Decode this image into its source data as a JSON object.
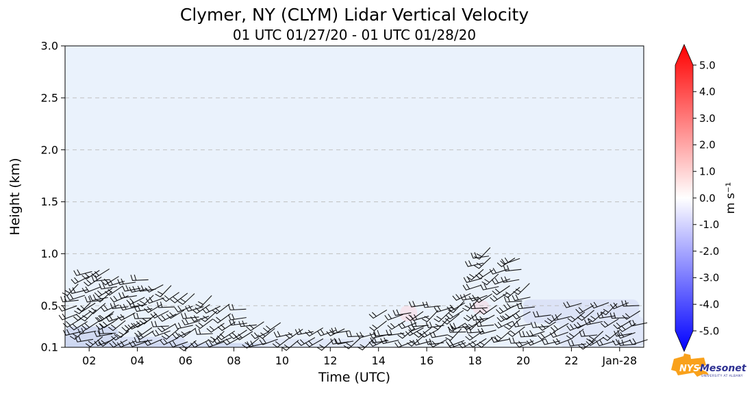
{
  "header": {
    "title": "Clymer, NY (CLYM) Lidar Vertical Velocity",
    "subtitle": "01 UTC 01/27/20 - 01 UTC 01/28/20"
  },
  "chart_data": {
    "type": "heatmap",
    "title": "Clymer, NY (CLYM) Lidar Vertical Velocity",
    "subtitle": "01 UTC 01/27/20 - 01 UTC 01/28/20",
    "station": "CLYM",
    "location": "Clymer, NY",
    "variable": "Lidar Vertical Velocity",
    "time_start": "01 UTC 01/27/20",
    "time_end": "01 UTC 01/28/20",
    "xlabel": "Time (UTC)",
    "ylabel": "Height (km)",
    "xlim_hours_after_start": [
      0,
      24
    ],
    "x_ticks": [
      {
        "hour": 1,
        "label": "02"
      },
      {
        "hour": 3,
        "label": "04"
      },
      {
        "hour": 5,
        "label": "06"
      },
      {
        "hour": 7,
        "label": "08"
      },
      {
        "hour": 9,
        "label": "10"
      },
      {
        "hour": 11,
        "label": "12"
      },
      {
        "hour": 13,
        "label": "14"
      },
      {
        "hour": 15,
        "label": "16"
      },
      {
        "hour": 17,
        "label": "18"
      },
      {
        "hour": 19,
        "label": "20"
      },
      {
        "hour": 21,
        "label": "22"
      },
      {
        "hour": 23,
        "label": "Jan-28"
      }
    ],
    "ylim": [
      0.1,
      3.0
    ],
    "y_ticks": [
      {
        "value": 0.1,
        "label": "0.1"
      },
      {
        "value": 0.5,
        "label": "0.5"
      },
      {
        "value": 1.0,
        "label": "1.0"
      },
      {
        "value": 1.5,
        "label": "1.5"
      },
      {
        "value": 2.0,
        "label": "2.0"
      },
      {
        "value": 2.5,
        "label": "2.5"
      },
      {
        "value": 3.0,
        "label": "3.0"
      }
    ],
    "grid": {
      "horizontal": true,
      "style": "dashed",
      "color": "#bfbfbf"
    },
    "colorbar": {
      "label": "m s⁻¹",
      "range": [
        -5.0,
        5.0
      ],
      "extend": "both",
      "colormap": "blue-white-red",
      "color_min": "#0000ff",
      "color_mid": "#ffffff",
      "color_max": "#ff0000",
      "ticks": [
        {
          "value": 5.0,
          "label": "5.0"
        },
        {
          "value": 4.0,
          "label": "4.0"
        },
        {
          "value": 3.0,
          "label": "3.0"
        },
        {
          "value": 2.0,
          "label": "2.0"
        },
        {
          "value": 1.0,
          "label": "1.0"
        },
        {
          "value": 0.0,
          "label": "0.0"
        },
        {
          "value": -1.0,
          "label": "-1.0"
        },
        {
          "value": -2.0,
          "label": "-2.0"
        },
        {
          "value": -3.0,
          "label": "-3.0"
        },
        {
          "value": -4.0,
          "label": "-4.0"
        },
        {
          "value": -5.0,
          "label": "-5.0"
        }
      ]
    },
    "field": {
      "description": "Vertical velocity near zero (approx -0.5 to 0 m/s, very pale blue) everywhere; weak negative (pale blue) patches below ~0.6 km and a few near-zero pinkish spots around 14 and 17 UTC",
      "background_value_ms": -0.3,
      "background_color": "#eaf2fc",
      "patches": [
        {
          "hours": [
            0.0,
            2.2
          ],
          "heights": [
            0.1,
            0.3
          ],
          "color": "#ccd6f0",
          "opacity": 0.85
        },
        {
          "hours": [
            2.0,
            5.0
          ],
          "heights": [
            0.1,
            0.2
          ],
          "color": "#d6def4",
          "opacity": 0.85
        },
        {
          "hours": [
            0.0,
            8.5
          ],
          "heights": [
            0.1,
            0.14
          ],
          "color": "#ccd6f0",
          "opacity": 0.8
        },
        {
          "hours": [
            8.0,
            13.0
          ],
          "heights": [
            0.1,
            0.18
          ],
          "color": "#e0e7f8",
          "opacity": 0.9
        },
        {
          "hours": [
            13.9,
            14.6
          ],
          "heights": [
            0.35,
            0.5
          ],
          "color": "#f6e0e9",
          "opacity": 0.8
        },
        {
          "hours": [
            16.9,
            17.6
          ],
          "heights": [
            0.42,
            0.55
          ],
          "color": "#f3dce6",
          "opacity": 0.7
        },
        {
          "hours": [
            19.0,
            23.8
          ],
          "heights": [
            0.33,
            0.56
          ],
          "color": "#d9e1f6",
          "opacity": 0.85
        },
        {
          "hours": [
            20.5,
            24.0
          ],
          "heights": [
            0.1,
            0.4
          ],
          "color": "#dfe6f8",
          "opacity": 0.9
        }
      ]
    },
    "barbs": {
      "description": "Black wind barbs plotted where lidar signal present, confined below ~1 km; deepest layer 01-04 UTC (~0.85 km) and a narrow deep column 17-19 UTC (~1.0 km)",
      "height_base_km": 0.1,
      "clusters": [
        {
          "hours": [
            0.0,
            1.6
          ],
          "height_top_km": 0.86
        },
        {
          "hours": [
            1.6,
            3.2
          ],
          "height_top_km": 0.8
        },
        {
          "hours": [
            3.2,
            4.6
          ],
          "height_top_km": 0.73
        },
        {
          "hours": [
            4.6,
            6.0
          ],
          "height_top_km": 0.62
        },
        {
          "hours": [
            6.0,
            7.4
          ],
          "height_top_km": 0.52
        },
        {
          "hours": [
            7.4,
            8.8
          ],
          "height_top_km": 0.34
        },
        {
          "hours": [
            8.8,
            11.4
          ],
          "height_top_km": 0.24
        },
        {
          "hours": [
            11.4,
            13.0
          ],
          "height_top_km": 0.3
        },
        {
          "hours": [
            13.0,
            14.6
          ],
          "height_top_km": 0.46
        },
        {
          "hours": [
            14.6,
            16.2
          ],
          "height_top_km": 0.52
        },
        {
          "hours": [
            16.2,
            16.9
          ],
          "height_top_km": 0.62
        },
        {
          "hours": [
            16.9,
            18.0
          ],
          "height_top_km": 1.0
        },
        {
          "hours": [
            18.0,
            18.9
          ],
          "height_top_km": 0.95
        },
        {
          "hours": [
            18.9,
            19.5
          ],
          "height_top_km": 0.72
        },
        {
          "hours": [
            19.5,
            21.0
          ],
          "height_top_km": 0.45
        },
        {
          "hours": [
            21.0,
            24.0
          ],
          "height_top_km": 0.5
        }
      ]
    }
  },
  "logo": {
    "org_prefix": "NYS",
    "org_suffix": "Mesonet",
    "tagline": "UNIVERSITY AT ALBANY",
    "colors": {
      "state": "#f9a11b",
      "text": "#2e3192"
    }
  }
}
